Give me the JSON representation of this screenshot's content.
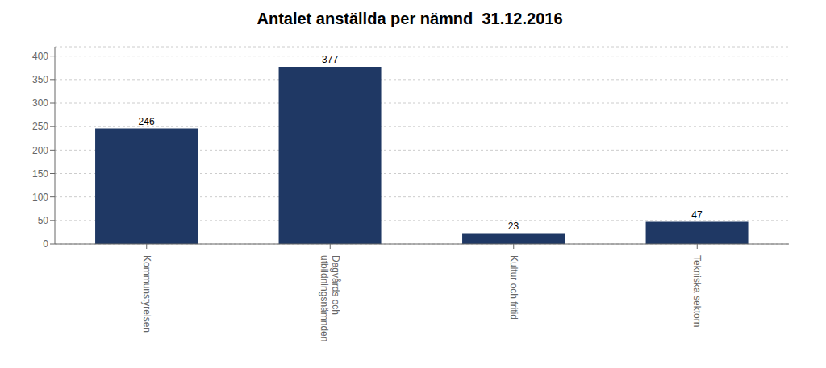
{
  "chart_data": {
    "type": "bar",
    "title": "Antalet anställda per nämnd  31.12.2016",
    "categories": [
      "Kommunstyrelsen",
      "Dagvårds och\nutbildningsnämnden",
      "Kultur och fritid",
      "Tekniska sektorn"
    ],
    "values": [
      246,
      377,
      23,
      47
    ],
    "color": "#1F3864",
    "ylim": [
      0,
      420
    ],
    "yticks": [
      0,
      50,
      100,
      150,
      200,
      250,
      300,
      350,
      400
    ],
    "grid": true,
    "data_labels": true
  }
}
